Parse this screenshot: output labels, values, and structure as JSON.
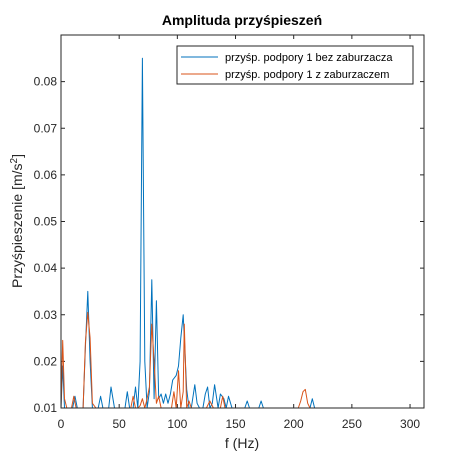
{
  "chart_data": {
    "type": "line",
    "title": "Amplituda przyśpieszeń",
    "xlabel": "f (Hz)",
    "ylabel": "Przyśpieszenie [m/s",
    "ylabel_superscript": "2",
    "ylabel_suffix": "]",
    "xlim": [
      0,
      312
    ],
    "ylim": [
      0.01,
      0.09
    ],
    "xticks": [
      0,
      50,
      100,
      150,
      200,
      250,
      300
    ],
    "yticks": [
      0.01,
      0.02,
      0.03,
      0.04,
      0.05,
      0.06,
      0.07,
      0.08
    ],
    "ytick_labels": [
      "0.01",
      "0.02",
      "0.03",
      "0.04",
      "0.05",
      "0.06",
      "0.07",
      "0.08"
    ],
    "grid": false,
    "legend_position": "top-right",
    "series": [
      {
        "name": "przyśp. podpory 1 bez zaburzacza",
        "color": "#0072BD",
        "x": [
          0,
          1.5,
          3,
          10,
          12,
          14,
          19,
          21,
          23,
          25,
          27,
          29,
          32,
          34,
          36,
          39,
          41,
          43,
          46,
          48,
          50,
          55,
          57,
          59,
          62,
          64,
          66,
          68,
          70,
          72,
          74,
          76,
          78,
          80,
          82,
          84,
          86,
          88,
          90,
          92,
          94,
          96,
          99,
          101,
          103,
          105,
          108,
          110,
          112,
          115,
          117,
          119,
          122,
          124,
          126,
          128,
          130,
          132,
          135,
          137,
          140,
          142,
          144,
          147,
          149,
          151,
          158,
          160,
          162,
          170,
          172,
          174,
          178,
          185,
          214,
          216,
          218,
          226
        ],
        "y": [
          0.01,
          0.019,
          0.01,
          0.01,
          0.0125,
          0.01,
          0.01,
          0.023,
          0.035,
          0.02,
          0.01,
          0.01,
          0.01,
          0.0125,
          0.01,
          0.01,
          0.01,
          0.0145,
          0.01,
          0.01,
          0.01,
          0.01,
          0.0135,
          0.01,
          0.01,
          0.0145,
          0.01,
          0.02,
          0.085,
          0.02,
          0.01,
          0.0135,
          0.0375,
          0.012,
          0.033,
          0.012,
          0.013,
          0.011,
          0.013,
          0.011,
          0.013,
          0.016,
          0.017,
          0.019,
          0.025,
          0.03,
          0.014,
          0.01,
          0.01,
          0.015,
          0.011,
          0.01,
          0.01,
          0.013,
          0.0145,
          0.01,
          0.011,
          0.015,
          0.01,
          0.013,
          0.012,
          0.01,
          0.0125,
          0.01,
          0.01,
          0.01,
          0.01,
          0.0115,
          0.01,
          0.01,
          0.0115,
          0.01,
          0.01,
          0.01,
          0.01,
          0.012,
          0.01,
          0.01
        ]
      },
      {
        "name": "przyśp. podpory 1 z zaburzaczem",
        "color": "#D95319",
        "x": [
          0,
          1.5,
          3,
          5,
          9,
          11,
          13,
          19,
          21,
          23,
          25,
          27,
          30,
          60,
          62,
          64,
          66,
          68,
          70,
          72,
          74,
          76,
          78,
          80,
          82,
          84,
          86,
          95,
          97,
          99,
          101,
          103,
          105,
          106,
          108,
          110,
          112,
          125,
          128,
          131,
          135,
          137,
          139,
          141,
          204,
          206,
          208,
          210,
          212,
          214
        ],
        "y": [
          0.01,
          0.0245,
          0.012,
          0.01,
          0.01,
          0.0125,
          0.01,
          0.01,
          0.024,
          0.0305,
          0.025,
          0.011,
          0.01,
          0.01,
          0.0125,
          0.01,
          0.01,
          0.0105,
          0.012,
          0.01,
          0.012,
          0.0145,
          0.028,
          0.02,
          0.011,
          0.0125,
          0.01,
          0.01,
          0.0135,
          0.01,
          0.018,
          0.01,
          0.0135,
          0.028,
          0.01,
          0.0115,
          0.01,
          0.01,
          0.0115,
          0.01,
          0.01,
          0.01,
          0.0125,
          0.01,
          0.01,
          0.0115,
          0.0135,
          0.014,
          0.011,
          0.01
        ]
      }
    ]
  }
}
